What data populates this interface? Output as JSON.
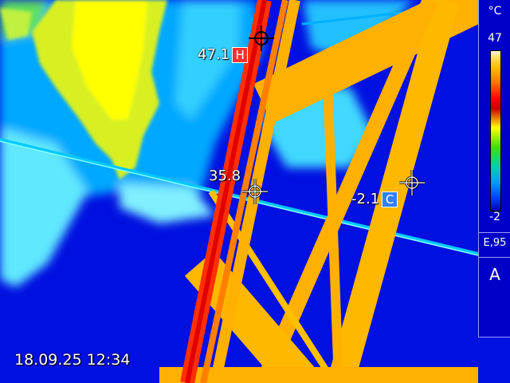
{
  "readings": {
    "hot_value": "47.1",
    "hot_badge": "H",
    "center_value": "35.8",
    "cold_value": "-2.1",
    "cold_badge": "C"
  },
  "timestamp": "18.09.25 12:34",
  "scale": {
    "unit": "°C",
    "max": "47",
    "min": "-2",
    "emissivity": "E,95",
    "mode": "A"
  },
  "colors": {
    "hot_badge": "#ff3030",
    "cold_badge": "#3080ff",
    "background": "#0010e0"
  }
}
